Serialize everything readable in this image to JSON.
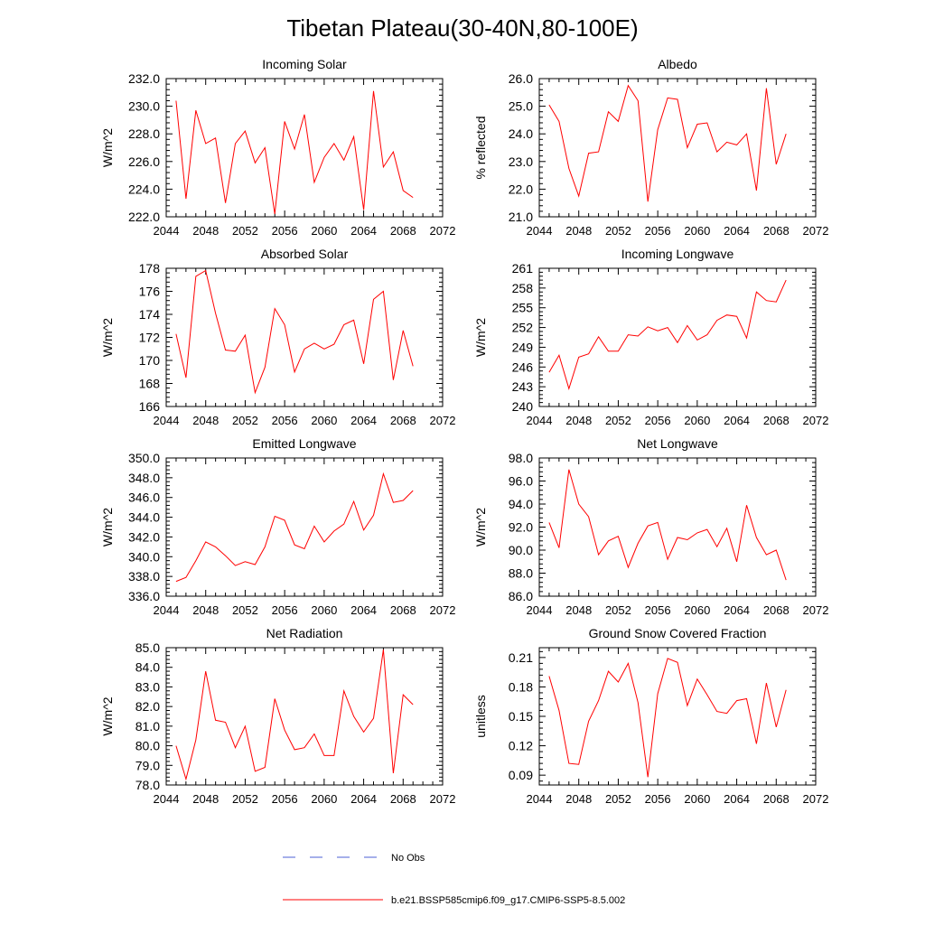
{
  "figure": {
    "title": "Tibetan Plateau(30-40N,80-100E)",
    "line_color": "#ff0000",
    "obs_color": "#4b5fd6"
  },
  "legend": {
    "obs_label": "No Obs",
    "model_label": "b.e21.BSSP585cmip6.f09_g17.CMIP6-SSP5-8.5.002"
  },
  "chart_data": [
    {
      "type": "line",
      "title": "Incoming Solar",
      "ylabel": "W/m^2",
      "xlim": [
        2044,
        2072
      ],
      "ylim": [
        222,
        232
      ],
      "xticks": [
        2044,
        2048,
        2052,
        2056,
        2060,
        2064,
        2068,
        2072
      ],
      "yticks": [
        222,
        224,
        226,
        228,
        230,
        232
      ],
      "yfmt": 1,
      "x": [
        2045,
        2046,
        2047,
        2048,
        2049,
        2050,
        2051,
        2052,
        2053,
        2054,
        2055,
        2056,
        2057,
        2058,
        2059,
        2060,
        2061,
        2062,
        2063,
        2064,
        2065,
        2066,
        2067,
        2068,
        2069
      ],
      "series": [
        {
          "values": [
            230.4,
            223.3,
            229.7,
            227.3,
            227.7,
            223.0,
            227.3,
            228.2,
            225.9,
            227.0,
            222.2,
            228.9,
            226.9,
            229.4,
            224.5,
            226.3,
            227.3,
            226.1,
            227.8,
            222.5,
            231.1,
            225.6,
            226.7,
            223.9,
            223.4
          ]
        }
      ]
    },
    {
      "type": "line",
      "title": "Albedo",
      "ylabel": "% reflected",
      "xlim": [
        2044,
        2072
      ],
      "ylim": [
        21,
        26
      ],
      "xticks": [
        2044,
        2048,
        2052,
        2056,
        2060,
        2064,
        2068,
        2072
      ],
      "yticks": [
        21,
        22,
        23,
        24,
        25,
        26
      ],
      "yfmt": 1,
      "x": [
        2045,
        2046,
        2047,
        2048,
        2049,
        2050,
        2051,
        2052,
        2053,
        2054,
        2055,
        2056,
        2057,
        2058,
        2059,
        2060,
        2061,
        2062,
        2063,
        2064,
        2065,
        2066,
        2067,
        2068,
        2069
      ],
      "series": [
        {
          "values": [
            25.05,
            24.45,
            22.75,
            21.75,
            23.3,
            23.35,
            24.8,
            24.45,
            25.75,
            25.2,
            21.55,
            24.15,
            25.3,
            25.25,
            23.5,
            24.35,
            24.4,
            23.35,
            23.7,
            23.6,
            24.0,
            21.95,
            25.65,
            22.9,
            24.0
          ]
        }
      ]
    },
    {
      "type": "line",
      "title": "Absorbed Solar",
      "ylabel": "W/m^2",
      "xlim": [
        2044,
        2072
      ],
      "ylim": [
        166,
        178
      ],
      "xticks": [
        2044,
        2048,
        2052,
        2056,
        2060,
        2064,
        2068,
        2072
      ],
      "yticks": [
        166,
        168,
        170,
        172,
        174,
        176,
        178
      ],
      "yfmt": 0,
      "x": [
        2045,
        2046,
        2047,
        2048,
        2049,
        2050,
        2051,
        2052,
        2053,
        2054,
        2055,
        2056,
        2057,
        2058,
        2059,
        2060,
        2061,
        2062,
        2063,
        2064,
        2065,
        2066,
        2067,
        2068,
        2069
      ],
      "series": [
        {
          "values": [
            172.3,
            168.5,
            177.3,
            177.8,
            174.1,
            170.9,
            170.8,
            172.2,
            167.2,
            169.4,
            174.5,
            173.1,
            169.0,
            171.0,
            171.5,
            171.0,
            171.4,
            173.1,
            173.5,
            169.7,
            175.3,
            176.0,
            168.3,
            172.6,
            169.5
          ]
        }
      ]
    },
    {
      "type": "line",
      "title": "Incoming Longwave",
      "ylabel": "W/m^2",
      "xlim": [
        2044,
        2072
      ],
      "ylim": [
        240,
        261
      ],
      "xticks": [
        2044,
        2048,
        2052,
        2056,
        2060,
        2064,
        2068,
        2072
      ],
      "yticks": [
        240,
        243,
        246,
        249,
        252,
        255,
        258,
        261
      ],
      "yfmt": 0,
      "x": [
        2045,
        2046,
        2047,
        2048,
        2049,
        2050,
        2051,
        2052,
        2053,
        2054,
        2055,
        2056,
        2057,
        2058,
        2059,
        2060,
        2061,
        2062,
        2063,
        2064,
        2065,
        2066,
        2067,
        2068,
        2069
      ],
      "series": [
        {
          "values": [
            245.2,
            247.8,
            242.7,
            247.5,
            248.0,
            250.6,
            248.4,
            248.4,
            250.9,
            250.7,
            252.1,
            251.5,
            252.0,
            249.7,
            252.3,
            250.1,
            250.9,
            253.1,
            253.9,
            253.7,
            250.4,
            257.4,
            256.1,
            255.9,
            259.2
          ]
        }
      ]
    },
    {
      "type": "line",
      "title": "Emitted Longwave",
      "ylabel": "W/m^2",
      "xlim": [
        2044,
        2072
      ],
      "ylim": [
        336,
        350
      ],
      "xticks": [
        2044,
        2048,
        2052,
        2056,
        2060,
        2064,
        2068,
        2072
      ],
      "yticks": [
        336,
        338,
        340,
        342,
        344,
        346,
        348,
        350
      ],
      "yfmt": 1,
      "x": [
        2045,
        2046,
        2047,
        2048,
        2049,
        2050,
        2051,
        2052,
        2053,
        2054,
        2055,
        2056,
        2057,
        2058,
        2059,
        2060,
        2061,
        2062,
        2063,
        2064,
        2065,
        2066,
        2067,
        2068,
        2069
      ],
      "series": [
        {
          "values": [
            337.5,
            337.9,
            339.6,
            341.5,
            341.0,
            340.1,
            339.1,
            339.5,
            339.2,
            341.0,
            344.1,
            343.7,
            341.2,
            340.8,
            343.1,
            341.5,
            342.6,
            343.3,
            345.6,
            342.7,
            344.2,
            348.4,
            345.5,
            345.7,
            346.7
          ]
        }
      ]
    },
    {
      "type": "line",
      "title": "Net Longwave",
      "ylabel": "W/m^2",
      "xlim": [
        2044,
        2072
      ],
      "ylim": [
        86,
        98
      ],
      "xticks": [
        2044,
        2048,
        2052,
        2056,
        2060,
        2064,
        2068,
        2072
      ],
      "yticks": [
        86,
        88,
        90,
        92,
        94,
        96,
        98
      ],
      "yfmt": 1,
      "x": [
        2045,
        2046,
        2047,
        2048,
        2049,
        2050,
        2051,
        2052,
        2053,
        2054,
        2055,
        2056,
        2057,
        2058,
        2059,
        2060,
        2061,
        2062,
        2063,
        2064,
        2065,
        2066,
        2067,
        2068,
        2069
      ],
      "series": [
        {
          "values": [
            92.4,
            90.2,
            97.0,
            94.0,
            92.9,
            89.6,
            90.8,
            91.2,
            88.5,
            90.6,
            92.1,
            92.4,
            89.2,
            91.1,
            90.9,
            91.5,
            91.8,
            90.3,
            91.9,
            89.0,
            93.9,
            91.1,
            89.6,
            90.0,
            87.4
          ]
        }
      ]
    },
    {
      "type": "line",
      "title": "Net Radiation",
      "ylabel": "W/m^2",
      "xlim": [
        2044,
        2072
      ],
      "ylim": [
        78,
        85
      ],
      "xticks": [
        2044,
        2048,
        2052,
        2056,
        2060,
        2064,
        2068,
        2072
      ],
      "yticks": [
        78,
        79,
        80,
        81,
        82,
        83,
        84,
        85
      ],
      "yfmt": 1,
      "x": [
        2045,
        2046,
        2047,
        2048,
        2049,
        2050,
        2051,
        2052,
        2053,
        2054,
        2055,
        2056,
        2057,
        2058,
        2059,
        2060,
        2061,
        2062,
        2063,
        2064,
        2065,
        2066,
        2067,
        2068,
        2069
      ],
      "series": [
        {
          "values": [
            80.0,
            78.3,
            80.3,
            83.8,
            81.3,
            81.2,
            79.9,
            81.0,
            78.7,
            78.9,
            82.4,
            80.8,
            79.8,
            79.9,
            80.6,
            79.5,
            79.5,
            82.8,
            81.5,
            80.7,
            81.4,
            84.9,
            78.6,
            82.6,
            82.1
          ]
        }
      ]
    },
    {
      "type": "line",
      "title": "Ground Snow Covered Fraction",
      "ylabel": "unitless",
      "xlim": [
        2044,
        2072
      ],
      "ylim": [
        0.08,
        0.22
      ],
      "xticks": [
        2044,
        2048,
        2052,
        2056,
        2060,
        2064,
        2068,
        2072
      ],
      "yticks": [
        0.09,
        0.12,
        0.15,
        0.18,
        0.21
      ],
      "yfmt": 2,
      "x": [
        2045,
        2046,
        2047,
        2048,
        2049,
        2050,
        2051,
        2052,
        2053,
        2054,
        2055,
        2056,
        2057,
        2058,
        2059,
        2060,
        2061,
        2062,
        2063,
        2064,
        2065,
        2066,
        2067,
        2068,
        2069
      ],
      "series": [
        {
          "values": [
            0.191,
            0.156,
            0.102,
            0.101,
            0.145,
            0.166,
            0.196,
            0.185,
            0.204,
            0.164,
            0.088,
            0.173,
            0.209,
            0.205,
            0.161,
            0.188,
            0.172,
            0.155,
            0.153,
            0.166,
            0.168,
            0.122,
            0.184,
            0.139,
            0.177
          ]
        }
      ]
    }
  ]
}
